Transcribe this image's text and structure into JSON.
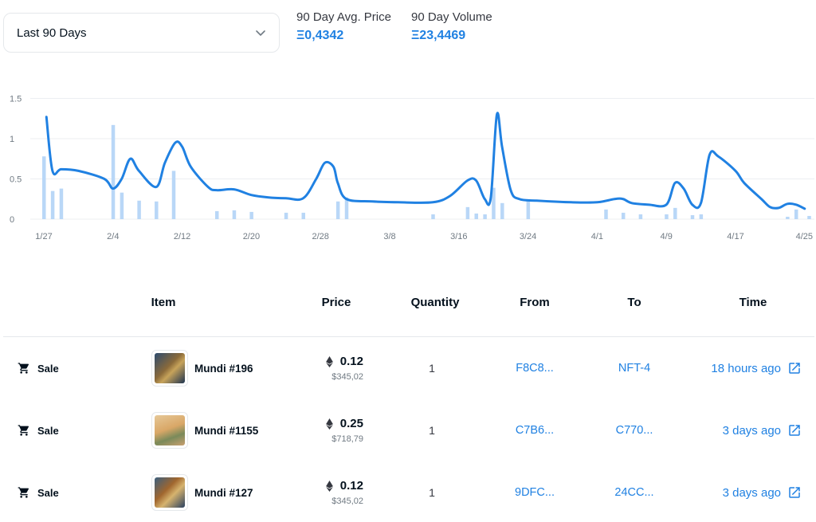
{
  "filter": {
    "selected": "Last 90 Days",
    "icon": "chevron-down-icon"
  },
  "stats": {
    "avg_price_label": "90 Day Avg. Price",
    "avg_price_value": "Ξ0,4342",
    "volume_label": "90 Day Volume",
    "volume_value": "Ξ23,4469"
  },
  "colors": {
    "accent": "#2081e2",
    "bar": "#b9d7f7",
    "text": "#04111d",
    "muted": "#707a83"
  },
  "chart_data": {
    "type": "line",
    "title": "",
    "xlabel": "",
    "ylabel": "",
    "ylim": [
      0,
      1.5
    ],
    "yticks": [
      "0",
      "0.5",
      "1",
      "1.5"
    ],
    "xticks": [
      {
        "day": 0,
        "label": "1/27"
      },
      {
        "day": 8,
        "label": "2/4"
      },
      {
        "day": 16,
        "label": "2/12"
      },
      {
        "day": 24,
        "label": "2/20"
      },
      {
        "day": 32,
        "label": "2/28"
      },
      {
        "day": 40,
        "label": "3/8"
      },
      {
        "day": 48,
        "label": "3/16"
      },
      {
        "day": 56,
        "label": "3/24"
      },
      {
        "day": 64,
        "label": "4/1"
      },
      {
        "day": 72,
        "label": "4/9"
      },
      {
        "day": 80,
        "label": "4/17"
      },
      {
        "day": 88,
        "label": "4/25"
      }
    ],
    "series": [
      {
        "kind": "line",
        "x": [
          0.3,
          1,
          2,
          4,
          7,
          8,
          9,
          10,
          11,
          13,
          14,
          15.2,
          16,
          17,
          19,
          20,
          22,
          24,
          26,
          28,
          30,
          31.5,
          32.5,
          33.5,
          34,
          35,
          38,
          41,
          45,
          47,
          49,
          50,
          51,
          51.7,
          52.4,
          53,
          54,
          55,
          57,
          61,
          64,
          66,
          67,
          68,
          70,
          72,
          73,
          74,
          75,
          76,
          77,
          78,
          80,
          81,
          83,
          84,
          85,
          86,
          87,
          88
        ],
        "values": [
          1.27,
          0.6,
          0.62,
          0.6,
          0.5,
          0.38,
          0.5,
          0.75,
          0.6,
          0.4,
          0.7,
          0.95,
          0.9,
          0.65,
          0.4,
          0.36,
          0.37,
          0.3,
          0.27,
          0.26,
          0.26,
          0.5,
          0.7,
          0.65,
          0.45,
          0.25,
          0.22,
          0.21,
          0.21,
          0.29,
          0.48,
          0.48,
          0.25,
          0.27,
          1.3,
          0.9,
          0.36,
          0.25,
          0.23,
          0.21,
          0.21,
          0.25,
          0.25,
          0.2,
          0.18,
          0.18,
          0.45,
          0.38,
          0.18,
          0.2,
          0.8,
          0.78,
          0.6,
          0.45,
          0.25,
          0.15,
          0.14,
          0.19,
          0.18,
          0.13
        ]
      },
      {
        "kind": "bar",
        "x": [
          0,
          1,
          2,
          8,
          9,
          11,
          13,
          15,
          20,
          22,
          24,
          28,
          30,
          34,
          35,
          45,
          49,
          50,
          51,
          52,
          53,
          56,
          65,
          67,
          69,
          72,
          73,
          75,
          76,
          86,
          87,
          88.5
        ],
        "values": [
          0.78,
          0.35,
          0.38,
          1.17,
          0.33,
          0.23,
          0.22,
          0.6,
          0.1,
          0.11,
          0.09,
          0.08,
          0.08,
          0.22,
          0.27,
          0.06,
          0.15,
          0.07,
          0.06,
          0.39,
          0.2,
          0.23,
          0.12,
          0.08,
          0.06,
          0.06,
          0.14,
          0.05,
          0.06,
          0.03,
          0.12,
          0.04
        ]
      }
    ],
    "grid": true,
    "legend": "none"
  },
  "table": {
    "headers": {
      "item": "Item",
      "price": "Price",
      "quantity": "Quantity",
      "from": "From",
      "to": "To",
      "time": "Time"
    },
    "rows": [
      {
        "event": "Sale",
        "item": "Mundi #196",
        "price": "0.12",
        "usd": "$345,02",
        "quantity": "1",
        "from": "F8C8...",
        "to": "NFT-4",
        "time": "18 hours ago"
      },
      {
        "event": "Sale",
        "item": "Mundi #1155",
        "price": "0.25",
        "usd": "$718,79",
        "quantity": "1",
        "from": "C7B6...",
        "to": "C770...",
        "time": "3 days ago"
      },
      {
        "event": "Sale",
        "item": "Mundi #127",
        "price": "0.12",
        "usd": "$345,02",
        "quantity": "1",
        "from": "9DFC...",
        "to": "24CC...",
        "time": "3 days ago"
      }
    ]
  }
}
